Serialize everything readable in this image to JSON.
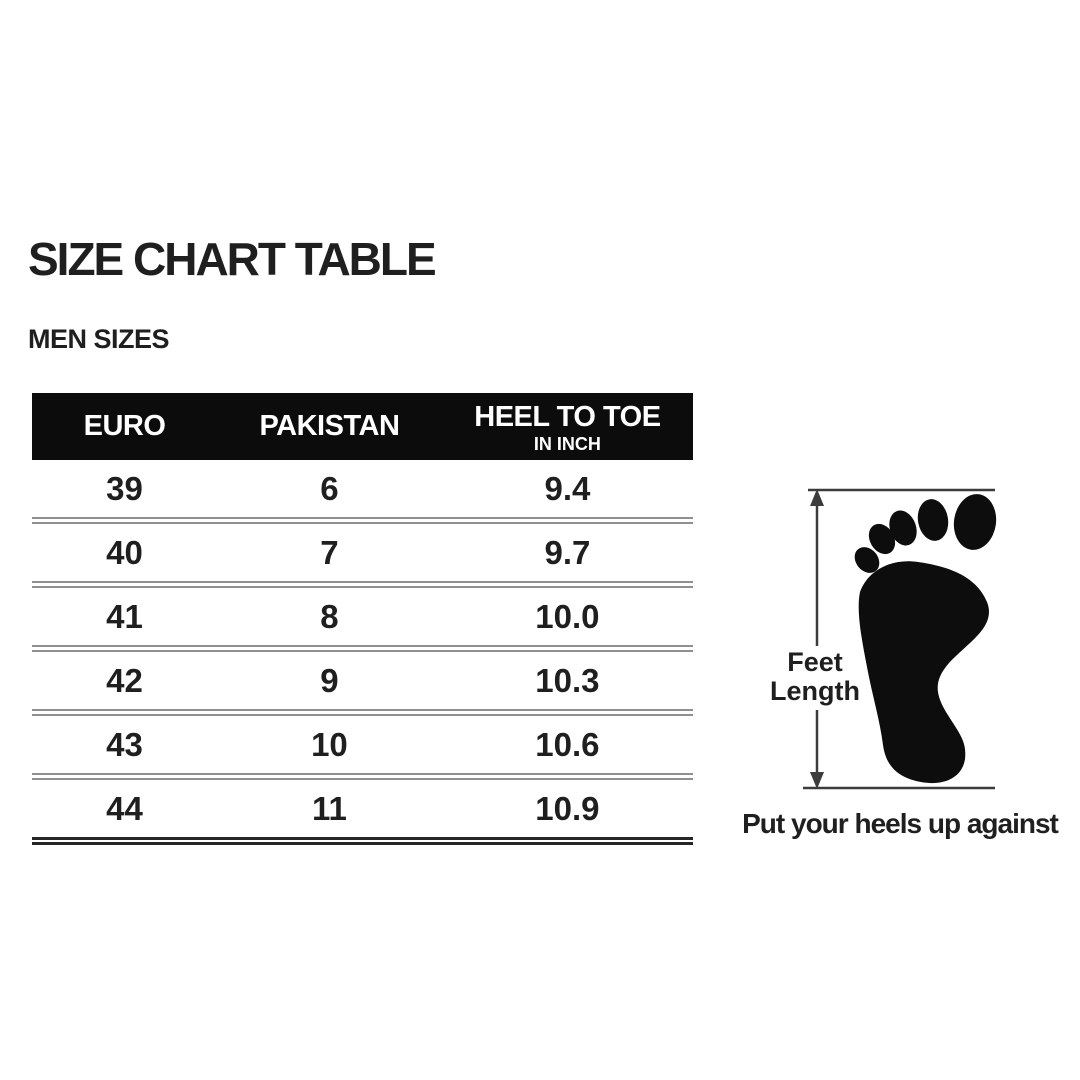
{
  "title": "SIZE CHART TABLE",
  "subtitle": "MEN SIZES",
  "table": {
    "columns": [
      {
        "label": "EURO",
        "sublabel": ""
      },
      {
        "label": "PAKISTAN",
        "sublabel": ""
      },
      {
        "label": "HEEL TO TOE",
        "sublabel": "IN INCH"
      }
    ],
    "rows": [
      [
        "39",
        "6",
        "9.4"
      ],
      [
        "40",
        "7",
        "9.7"
      ],
      [
        "41",
        "8",
        "10.0"
      ],
      [
        "42",
        "9",
        "10.3"
      ],
      [
        "43",
        "10",
        "10.6"
      ],
      [
        "44",
        "11",
        "10.9"
      ]
    ]
  },
  "diagram": {
    "icon": "footprint-icon",
    "arrow_label_line1": "Feet",
    "arrow_label_line2": "Length",
    "caption": "Put your heels up against"
  },
  "colors": {
    "background": "#ffffff",
    "header_bg": "#0c0c0c",
    "header_text": "#ffffff",
    "body_text": "#1f1f1f",
    "row_separator": "#909090",
    "table_bottom_border": "#262626",
    "dim_line": "#3c3c3c",
    "footprint": "#0d0d0d"
  },
  "chart_data": {
    "type": "table",
    "title": "SIZE CHART TABLE",
    "subtitle": "MEN SIZES",
    "columns": [
      "EURO",
      "PAKISTAN",
      "HEEL TO TOE IN INCH"
    ],
    "rows": [
      [
        39,
        6,
        9.4
      ],
      [
        40,
        7,
        9.7
      ],
      [
        41,
        8,
        10.0
      ],
      [
        42,
        9,
        10.3
      ],
      [
        43,
        10,
        10.6
      ],
      [
        44,
        11,
        10.9
      ]
    ],
    "annotations": [
      "Feet Length",
      "Put your heels up against"
    ],
    "legend_position": "none",
    "grid": "horizontal-row-separators"
  }
}
